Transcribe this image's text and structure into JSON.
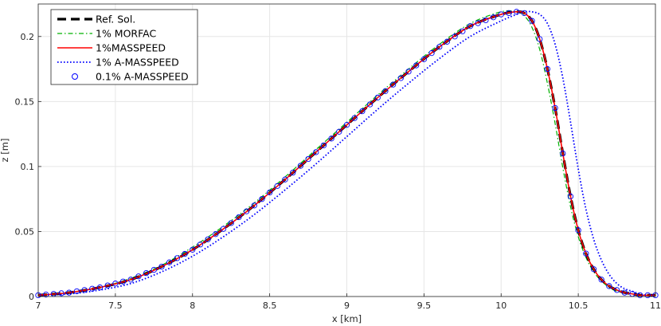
{
  "chart_data": {
    "type": "line",
    "xlabel": "x [km]",
    "ylabel": "z [m]",
    "xlim": [
      7,
      11
    ],
    "ylim": [
      0,
      0.225
    ],
    "xticks": [
      "7",
      "7.5",
      "8",
      "8.5",
      "9",
      "9.5",
      "10",
      "10.5",
      "11"
    ],
    "yticks": [
      "0",
      "0.05",
      "0.1",
      "0.15",
      "0.2"
    ],
    "grid": true,
    "legend_position": "top-left",
    "x": [
      7.0,
      7.2,
      7.4,
      7.6,
      7.8,
      8.0,
      8.2,
      8.4,
      8.6,
      8.8,
      9.0,
      9.2,
      9.4,
      9.6,
      9.8,
      10.0,
      10.1,
      10.15,
      10.2,
      10.25,
      10.3,
      10.35,
      10.4,
      10.45,
      10.5,
      10.55,
      10.6,
      10.65,
      10.7,
      10.75,
      10.8,
      10.85,
      10.9,
      10.95,
      11.0
    ],
    "series": [
      {
        "name": "Ref. Sol.",
        "color": "#000000",
        "style": "dashed-thick",
        "values": [
          0.001,
          0.003,
          0.007,
          0.013,
          0.023,
          0.036,
          0.052,
          0.07,
          0.09,
          0.111,
          0.132,
          0.153,
          0.173,
          0.192,
          0.208,
          0.217,
          0.219,
          0.218,
          0.212,
          0.198,
          0.175,
          0.145,
          0.11,
          0.077,
          0.051,
          0.033,
          0.021,
          0.013,
          0.008,
          0.005,
          0.003,
          0.002,
          0.001,
          0.001,
          0.001
        ]
      },
      {
        "name": "1% MORFAC",
        "color": "#00b200",
        "style": "dashdot",
        "values": [
          0.001,
          0.003,
          0.007,
          0.014,
          0.024,
          0.038,
          0.054,
          0.072,
          0.092,
          0.113,
          0.134,
          0.155,
          0.175,
          0.194,
          0.21,
          0.219,
          0.219,
          0.216,
          0.207,
          0.19,
          0.164,
          0.133,
          0.099,
          0.069,
          0.046,
          0.03,
          0.019,
          0.012,
          0.007,
          0.004,
          0.003,
          0.002,
          0.001,
          0.001,
          0.001
        ]
      },
      {
        "name": "1%MASSPEED",
        "color": "#ff0000",
        "style": "solid",
        "values": [
          0.001,
          0.003,
          0.007,
          0.013,
          0.023,
          0.036,
          0.052,
          0.07,
          0.09,
          0.111,
          0.132,
          0.153,
          0.173,
          0.192,
          0.208,
          0.217,
          0.219,
          0.218,
          0.212,
          0.198,
          0.175,
          0.145,
          0.11,
          0.077,
          0.051,
          0.033,
          0.021,
          0.013,
          0.008,
          0.005,
          0.003,
          0.002,
          0.001,
          0.001,
          0.001
        ]
      },
      {
        "name": "1% A-MASSPEED",
        "color": "#0000ff",
        "style": "dotted",
        "values": [
          0.001,
          0.002,
          0.005,
          0.01,
          0.019,
          0.031,
          0.046,
          0.063,
          0.082,
          0.102,
          0.123,
          0.144,
          0.164,
          0.183,
          0.2,
          0.212,
          0.217,
          0.219,
          0.219,
          0.217,
          0.21,
          0.194,
          0.168,
          0.134,
          0.098,
          0.067,
          0.044,
          0.028,
          0.017,
          0.01,
          0.006,
          0.004,
          0.002,
          0.001,
          0.001
        ]
      },
      {
        "name": "0.1% A-MASSPEED",
        "color": "#0000ff",
        "style": "circles",
        "values": [
          0.001,
          0.003,
          0.007,
          0.013,
          0.023,
          0.036,
          0.052,
          0.07,
          0.09,
          0.111,
          0.132,
          0.153,
          0.173,
          0.192,
          0.208,
          0.217,
          0.219,
          0.218,
          0.212,
          0.198,
          0.175,
          0.145,
          0.11,
          0.077,
          0.051,
          0.033,
          0.021,
          0.013,
          0.008,
          0.005,
          0.003,
          0.002,
          0.001,
          0.001,
          0.001
        ]
      }
    ]
  }
}
